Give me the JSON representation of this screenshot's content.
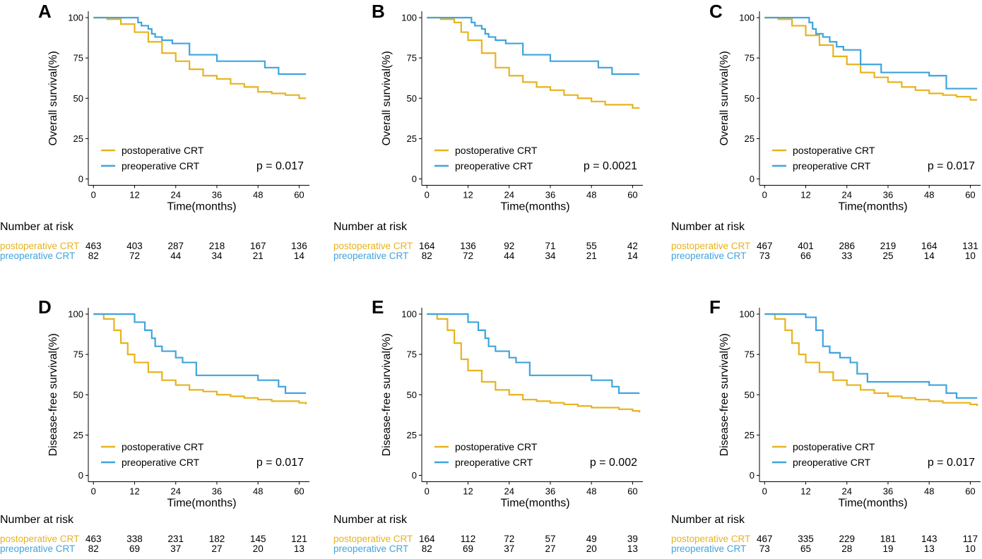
{
  "colors": {
    "postoperative": "#E8B31F",
    "preoperative": "#3FA4DD"
  },
  "legend": {
    "postoperative": "postoperative CRT",
    "preoperative": "preoperative CRT"
  },
  "risk_header": "Number at risk",
  "x_label": "Time(months)",
  "x_ticks": [
    0,
    12,
    24,
    36,
    48,
    60
  ],
  "y_ticks": [
    0,
    25,
    50,
    75,
    100
  ],
  "chart_data": [
    {
      "panel": "A",
      "type": "line",
      "ylabel": "Overall survival(%)",
      "xlabel": "Time(months)",
      "xlim": [
        0,
        62
      ],
      "ylim": [
        0,
        100
      ],
      "p_value": "p = 0.017",
      "series": [
        {
          "name": "postoperative CRT",
          "color": "#E8B31F",
          "x": [
            0,
            4,
            8,
            12,
            16,
            20,
            24,
            28,
            32,
            36,
            40,
            44,
            48,
            52,
            56,
            60,
            62
          ],
          "values": [
            100,
            99,
            96,
            91,
            85,
            78,
            73,
            68,
            64,
            62,
            59,
            57,
            54,
            53,
            52,
            50,
            50
          ]
        },
        {
          "name": "preoperative CRT",
          "color": "#3FA4DD",
          "x": [
            0,
            8,
            13,
            14,
            16,
            17,
            18,
            20,
            23,
            28,
            36,
            50,
            54,
            62
          ],
          "values": [
            100,
            100,
            97,
            95,
            93,
            90,
            88,
            86,
            84,
            77,
            73,
            69,
            65,
            65
          ]
        }
      ],
      "risk_table": [
        {
          "label": "postoperative CRT",
          "counts": [
            "463",
            "403",
            "287",
            "218",
            "167",
            "136"
          ]
        },
        {
          "label": "preoperative CRT",
          "counts": [
            "82",
            "72",
            "44",
            "34",
            "21",
            "14"
          ]
        }
      ]
    },
    {
      "panel": "B",
      "type": "line",
      "ylabel": "Overall survival(%)",
      "xlabel": "Time(months)",
      "xlim": [
        0,
        62
      ],
      "ylim": [
        0,
        100
      ],
      "p_value": "p = 0.0021",
      "series": [
        {
          "name": "postoperative CRT",
          "color": "#E8B31F",
          "x": [
            0,
            4,
            8,
            10,
            12,
            16,
            20,
            24,
            28,
            32,
            36,
            40,
            44,
            48,
            52,
            56,
            60,
            62
          ],
          "values": [
            100,
            99,
            97,
            91,
            86,
            78,
            69,
            64,
            60,
            57,
            55,
            52,
            50,
            48,
            46,
            46,
            44,
            44
          ]
        },
        {
          "name": "preoperative CRT",
          "color": "#3FA4DD",
          "x": [
            0,
            8,
            13,
            14,
            16,
            17,
            18,
            20,
            23,
            28,
            36,
            50,
            54,
            62
          ],
          "values": [
            100,
            100,
            97,
            95,
            93,
            90,
            88,
            86,
            84,
            77,
            73,
            69,
            65,
            65
          ]
        }
      ],
      "risk_table": [
        {
          "label": "postoperative CRT",
          "counts": [
            "164",
            "136",
            "92",
            "71",
            "55",
            "42"
          ]
        },
        {
          "label": "preoperative CRT",
          "counts": [
            "82",
            "72",
            "44",
            "34",
            "21",
            "14"
          ]
        }
      ]
    },
    {
      "panel": "C",
      "type": "line",
      "ylabel": "Overall survival(%)",
      "xlabel": "Time(months)",
      "xlim": [
        0,
        62
      ],
      "ylim": [
        0,
        100
      ],
      "p_value": "p = 0.017",
      "series": [
        {
          "name": "postoperative CRT",
          "color": "#E8B31F",
          "x": [
            0,
            4,
            8,
            12,
            16,
            20,
            24,
            28,
            32,
            36,
            40,
            44,
            48,
            52,
            56,
            60,
            62
          ],
          "values": [
            100,
            99,
            95,
            89,
            83,
            76,
            71,
            66,
            63,
            60,
            57,
            55,
            53,
            52,
            51,
            49,
            49
          ]
        },
        {
          "name": "preoperative CRT",
          "color": "#3FA4DD",
          "x": [
            0,
            10,
            13,
            14,
            15,
            17,
            19,
            21,
            23,
            28,
            34,
            48,
            53,
            62
          ],
          "values": [
            100,
            100,
            97,
            93,
            90,
            88,
            85,
            82,
            80,
            71,
            66,
            64,
            56,
            56
          ]
        }
      ],
      "risk_table": [
        {
          "label": "postoperative CRT",
          "counts": [
            "467",
            "401",
            "286",
            "219",
            "164",
            "131"
          ]
        },
        {
          "label": "preoperative CRT",
          "counts": [
            "73",
            "66",
            "33",
            "25",
            "14",
            "10"
          ]
        }
      ]
    },
    {
      "panel": "D",
      "type": "line",
      "ylabel": "Disease-free survival(%)",
      "xlabel": "Time(months)",
      "xlim": [
        0,
        62
      ],
      "ylim": [
        0,
        100
      ],
      "p_value": "p = 0.017",
      "series": [
        {
          "name": "postoperative CRT",
          "color": "#E8B31F",
          "x": [
            0,
            3,
            6,
            8,
            10,
            12,
            16,
            20,
            24,
            28,
            32,
            36,
            40,
            44,
            48,
            52,
            56,
            60,
            62
          ],
          "values": [
            100,
            97,
            90,
            82,
            75,
            70,
            64,
            59,
            56,
            53,
            52,
            50,
            49,
            48,
            47,
            46,
            46,
            45,
            44
          ]
        },
        {
          "name": "preoperative CRT",
          "color": "#3FA4DD",
          "x": [
            0,
            8,
            12,
            15,
            17,
            18,
            20,
            24,
            26,
            30,
            36,
            48,
            54,
            56,
            62
          ],
          "values": [
            100,
            100,
            95,
            90,
            85,
            80,
            77,
            73,
            70,
            62,
            62,
            59,
            55,
            51,
            51
          ]
        }
      ],
      "risk_table": [
        {
          "label": "postoperative CRT",
          "counts": [
            "463",
            "338",
            "231",
            "182",
            "145",
            "121"
          ]
        },
        {
          "label": "preoperative CRT",
          "counts": [
            "82",
            "69",
            "37",
            "27",
            "20",
            "13"
          ]
        }
      ]
    },
    {
      "panel": "E",
      "type": "line",
      "ylabel": "Disease-free survival(%)",
      "xlabel": "Time(months)",
      "xlim": [
        0,
        62
      ],
      "ylim": [
        0,
        100
      ],
      "p_value": "p = 0.002",
      "series": [
        {
          "name": "postoperative CRT",
          "color": "#E8B31F",
          "x": [
            0,
            3,
            6,
            8,
            10,
            12,
            16,
            20,
            24,
            28,
            32,
            36,
            40,
            44,
            48,
            52,
            56,
            60,
            62
          ],
          "values": [
            100,
            97,
            90,
            82,
            72,
            65,
            58,
            53,
            50,
            47,
            46,
            45,
            44,
            43,
            42,
            42,
            41,
            40,
            39
          ]
        },
        {
          "name": "preoperative CRT",
          "color": "#3FA4DD",
          "x": [
            0,
            8,
            12,
            15,
            17,
            18,
            20,
            24,
            26,
            30,
            36,
            48,
            54,
            56,
            62
          ],
          "values": [
            100,
            100,
            95,
            90,
            85,
            80,
            77,
            73,
            70,
            62,
            62,
            59,
            55,
            51,
            51
          ]
        }
      ],
      "risk_table": [
        {
          "label": "postoperative CRT",
          "counts": [
            "164",
            "112",
            "72",
            "57",
            "49",
            "39"
          ]
        },
        {
          "label": "preoperative CRT",
          "counts": [
            "82",
            "69",
            "37",
            "27",
            "20",
            "13"
          ]
        }
      ]
    },
    {
      "panel": "F",
      "type": "line",
      "ylabel": "Disease-free survival(%)",
      "xlabel": "Time(months)",
      "xlim": [
        0,
        62
      ],
      "ylim": [
        0,
        100
      ],
      "p_value": "p = 0.017",
      "series": [
        {
          "name": "postoperative CRT",
          "color": "#E8B31F",
          "x": [
            0,
            3,
            6,
            8,
            10,
            12,
            16,
            20,
            24,
            28,
            32,
            36,
            40,
            44,
            48,
            52,
            56,
            60,
            62
          ],
          "values": [
            100,
            97,
            90,
            82,
            75,
            70,
            64,
            59,
            56,
            53,
            51,
            49,
            48,
            47,
            46,
            45,
            45,
            44,
            43
          ]
        },
        {
          "name": "preoperative CRT",
          "color": "#3FA4DD",
          "x": [
            0,
            9,
            12,
            15,
            17,
            19,
            22,
            25,
            27,
            30,
            48,
            53,
            56,
            62
          ],
          "values": [
            100,
            100,
            98,
            90,
            80,
            76,
            73,
            70,
            63,
            58,
            56,
            51,
            48,
            48
          ]
        }
      ],
      "risk_table": [
        {
          "label": "postoperative CRT",
          "counts": [
            "467",
            "335",
            "229",
            "181",
            "143",
            "117"
          ]
        },
        {
          "label": "preoperative CRT",
          "counts": [
            "73",
            "65",
            "28",
            "19",
            "13",
            "10"
          ]
        }
      ]
    }
  ]
}
